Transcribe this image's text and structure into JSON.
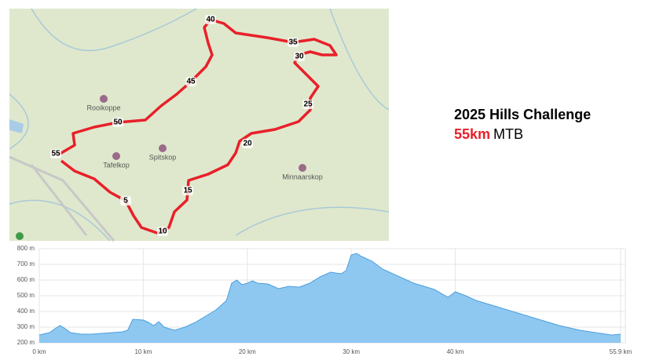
{
  "heading": {
    "title": "2025 Hills Challenge",
    "distance": "55km",
    "sport": "MTB"
  },
  "map": {
    "places": [
      "Rooikoppe",
      "Tafelkop",
      "Spitskop",
      "Minnaarskop"
    ],
    "km_markers": [
      "5",
      "10",
      "15",
      "20",
      "25",
      "30",
      "35",
      "40",
      "45",
      "50",
      "55"
    ]
  },
  "chart_data": {
    "type": "area",
    "color": "#8ec8f0",
    "line_color": "#4a9ee0",
    "grid": true,
    "x": [
      0,
      1,
      1.5,
      2,
      2.5,
      3,
      4,
      5,
      6,
      7,
      8,
      8.5,
      9,
      10,
      10.5,
      11,
      11.5,
      12,
      13,
      14,
      15,
      16,
      17,
      18,
      18.5,
      19,
      19.5,
      20,
      20.5,
      21,
      22,
      23,
      24,
      25,
      26,
      27,
      28,
      29,
      29.5,
      30,
      30.5,
      31,
      32,
      33,
      34,
      35,
      36,
      37,
      38,
      39.3,
      40,
      41,
      42,
      44,
      46,
      48,
      50,
      52,
      54,
      55,
      55.9
    ],
    "values": [
      250,
      265,
      290,
      310,
      290,
      265,
      255,
      255,
      260,
      265,
      270,
      280,
      350,
      345,
      330,
      310,
      335,
      300,
      280,
      300,
      330,
      370,
      410,
      470,
      580,
      600,
      570,
      580,
      595,
      580,
      575,
      545,
      560,
      555,
      580,
      620,
      650,
      640,
      660,
      760,
      770,
      750,
      720,
      670,
      640,
      610,
      580,
      560,
      540,
      490,
      525,
      500,
      470,
      430,
      390,
      350,
      310,
      280,
      260,
      250,
      255
    ],
    "xlim": [
      0,
      55.9
    ],
    "ylim": [
      200,
      800
    ],
    "xticks": [
      {
        "value": 0,
        "label": "0 km"
      },
      {
        "value": 10,
        "label": "10 km"
      },
      {
        "value": 20,
        "label": "20 km"
      },
      {
        "value": 30,
        "label": "30 km"
      },
      {
        "value": 40,
        "label": "40 km"
      },
      {
        "value": 55.9,
        "label": "55.9 km"
      }
    ],
    "yticks": [
      {
        "value": 200,
        "label": "200 m"
      },
      {
        "value": 300,
        "label": "300 m"
      },
      {
        "value": 400,
        "label": "400 m"
      },
      {
        "value": 500,
        "label": "500 m"
      },
      {
        "value": 600,
        "label": "600 m"
      },
      {
        "value": 700,
        "label": "700 m"
      },
      {
        "value": 800,
        "label": "800 m"
      }
    ]
  }
}
